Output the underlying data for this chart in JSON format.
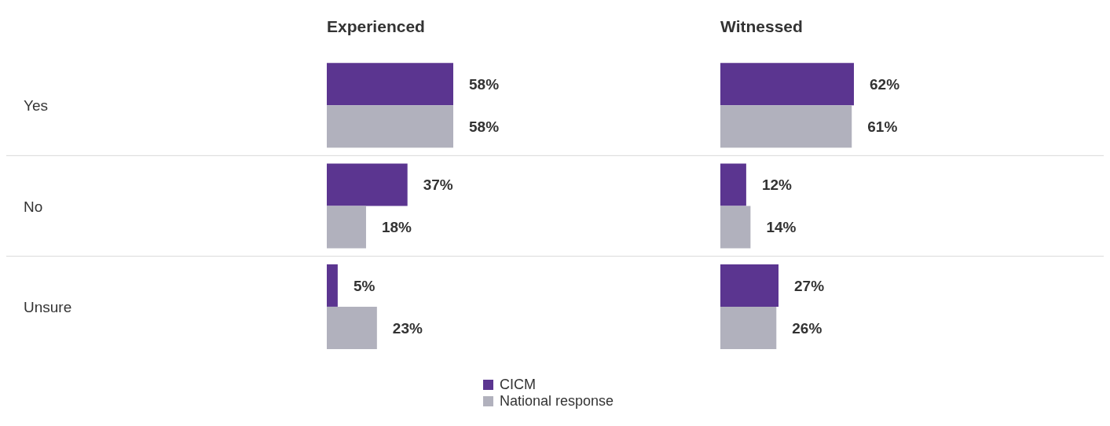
{
  "chart_data": [
    {
      "type": "bar",
      "orientation": "horizontal",
      "title": "Experienced",
      "categories": [
        "Yes",
        "No",
        "Unsure"
      ],
      "series": [
        {
          "name": "CICM",
          "color": "#5b3590",
          "values": [
            58,
            37,
            5
          ],
          "value_labels": [
            "58%",
            "37%",
            "5%"
          ]
        },
        {
          "name": "National response",
          "color": "#b1b1bd",
          "values": [
            58,
            18,
            23
          ],
          "value_labels": [
            "58%",
            "18%",
            "23%"
          ]
        }
      ],
      "grid": "y",
      "legend": "bottom",
      "tick_labels": "y"
    },
    {
      "type": "bar",
      "orientation": "horizontal",
      "title": "Witnessed",
      "categories": [
        null,
        null,
        null
      ],
      "series": [
        {
          "color": "#5b3590",
          "values": [
            62,
            12,
            27
          ],
          "value_labels": [
            "62%",
            "12%",
            "27%"
          ]
        },
        {
          "color": "#b1b1bd",
          "values": [
            61,
            14,
            26
          ],
          "value_labels": [
            "61%",
            "14%",
            "26%"
          ]
        }
      ],
      "grid": "y",
      "tick_labels": false
    }
  ]
}
